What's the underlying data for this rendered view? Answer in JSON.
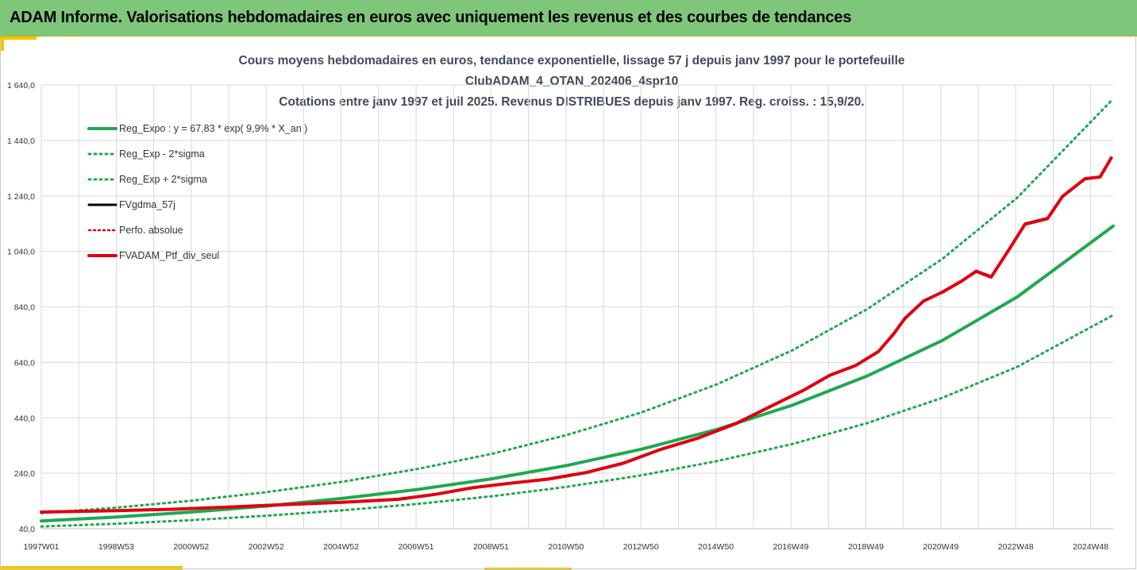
{
  "header": {
    "title": "ADAM Informe. Valorisations hebdomadaires en euros avec uniquement les revenus et des courbes de tendances"
  },
  "colors": {
    "header_bg": "#7dc67a",
    "accent_yellow": "#f5c400",
    "trend_green": "#1fa851",
    "black_line": "#000000",
    "red_line": "#e0000f",
    "grid": "#d9d9d9"
  },
  "chart_data": {
    "type": "line",
    "title_lines": [
      "Cours moyens hebdomadaires en euros, tendance exponentielle, lissage 57 j depuis janv 1997 pour le portefeuille",
      "ClubADAM_4_OTAN_202406_4spr10",
      "Cotations entre janv 1997 et juil 2025. Revenus DISTRIBUES depuis janv 1997. Reg. croiss. : 15,9/20."
    ],
    "x_tick_labels": [
      "1997W01",
      "1998W53",
      "2000W52",
      "2002W52",
      "2004W52",
      "2006W51",
      "2008W51",
      "2010W50",
      "2012W50",
      "2014W50",
      "2016W49",
      "2018W49",
      "2020W49",
      "2022W48",
      "2024W48"
    ],
    "x_range_years": [
      1997.0,
      2025.55
    ],
    "y_tick_labels": [
      "40,0",
      "240,0",
      "440,0",
      "640,0",
      "840,0",
      "1 040,0",
      "1 240,0",
      "1 440,0",
      "1 640,0"
    ],
    "ylim": [
      40,
      1640
    ],
    "grid": true,
    "legend_position": "top-left",
    "series": [
      {
        "name": "Reg_Expo : y = 67,83 * exp( 9,9% *  X_an )",
        "style": "solid-green",
        "x": [
          1997.0,
          1999.0,
          2001.0,
          2003.0,
          2005.0,
          2007.0,
          2009.0,
          2011.0,
          2013.0,
          2015.0,
          2017.0,
          2019.0,
          2021.0,
          2023.0,
          2025.55
        ],
        "y": [
          68,
          82,
          100,
          122,
          149,
          181,
          220,
          268,
          327,
          398,
          485,
          591,
          719,
          876,
          1131
        ]
      },
      {
        "name": "Reg_Exp - 2*sigma",
        "style": "dotted-green",
        "x": [
          1997.0,
          1999.0,
          2001.0,
          2003.0,
          2005.0,
          2007.0,
          2009.0,
          2011.0,
          2013.0,
          2015.0,
          2017.0,
          2019.0,
          2021.0,
          2023.0,
          2025.55
        ],
        "y": [
          48,
          58,
          71,
          87,
          106,
          129,
          157,
          191,
          233,
          284,
          345,
          421,
          512,
          624,
          810
        ]
      },
      {
        "name": "Reg_Exp + 2*sigma",
        "style": "dotted-green",
        "x": [
          1997.0,
          1999.0,
          2001.0,
          2003.0,
          2005.0,
          2007.0,
          2009.0,
          2011.0,
          2013.0,
          2015.0,
          2017.0,
          2019.0,
          2021.0,
          2023.0,
          2025.55
        ],
        "y": [
          96,
          116,
          141,
          172,
          209,
          255,
          310,
          378,
          460,
          561,
          683,
          832,
          1013,
          1234,
          1590
        ]
      },
      {
        "name": "FVgdma_57j",
        "style": "solid-black",
        "x": [
          1997.0,
          1999.0,
          2000.5,
          2002.0,
          2003.5,
          2005.0,
          2006.5,
          2007.5,
          2008.5,
          2009.5,
          2010.5,
          2011.5,
          2012.5,
          2013.5,
          2014.5,
          2015.5,
          2016.5,
          2017.3,
          2018.0,
          2018.7,
          2019.3,
          2019.7,
          2020.0,
          2020.5,
          2021.0,
          2021.5,
          2021.9,
          2022.3,
          2022.8,
          2023.2,
          2023.8,
          2024.2,
          2024.8,
          2025.2,
          2025.5
        ],
        "y": [
          100,
          106,
          111,
          119,
          128,
          136,
          147,
          165,
          189,
          205,
          220,
          243,
          277,
          327,
          368,
          420,
          487,
          540,
          594,
          630,
          680,
          740,
          800,
          860,
          895,
          930,
          970,
          950,
          1050,
          1140,
          1160,
          1240,
          1300,
          1310,
          1375
        ]
      },
      {
        "name": "Perfo. absolue",
        "style": "dotted-red",
        "x": [
          1997.0,
          1999.0,
          2000.5,
          2002.0,
          2003.5,
          2005.0,
          2006.5,
          2007.5,
          2008.5,
          2009.5,
          2010.5,
          2011.5,
          2012.5,
          2013.5,
          2014.5,
          2015.5,
          2016.5,
          2017.3,
          2018.0,
          2018.7,
          2019.3,
          2019.7,
          2020.0,
          2020.5,
          2021.0,
          2021.5,
          2021.9,
          2022.3,
          2022.8,
          2023.2,
          2023.8,
          2024.2,
          2024.8,
          2025.2,
          2025.5
        ],
        "y": [
          100,
          106,
          111,
          119,
          128,
          136,
          147,
          165,
          189,
          205,
          220,
          243,
          277,
          327,
          368,
          420,
          487,
          540,
          594,
          630,
          680,
          740,
          800,
          860,
          895,
          930,
          970,
          950,
          1050,
          1140,
          1160,
          1240,
          1300,
          1310,
          1375
        ]
      },
      {
        "name": "FVADAM_Ptf_div_seul",
        "style": "solid-red",
        "x": [
          1997.0,
          1999.0,
          2000.5,
          2002.0,
          2003.5,
          2005.0,
          2006.5,
          2007.5,
          2008.5,
          2009.5,
          2010.5,
          2011.5,
          2012.5,
          2013.5,
          2014.5,
          2015.5,
          2016.5,
          2017.3,
          2018.0,
          2018.7,
          2019.3,
          2019.7,
          2020.0,
          2020.5,
          2021.0,
          2021.5,
          2021.9,
          2022.3,
          2022.8,
          2023.2,
          2023.8,
          2024.2,
          2024.8,
          2025.2,
          2025.5
        ],
        "y": [
          100,
          105,
          110,
          118,
          127,
          135,
          146,
          164,
          188,
          204,
          219,
          242,
          276,
          326,
          367,
          419,
          486,
          539,
          593,
          629,
          679,
          742,
          798,
          861,
          893,
          932,
          968,
          947,
          1052,
          1138,
          1158,
          1238,
          1302,
          1308,
          1377
        ]
      }
    ]
  }
}
